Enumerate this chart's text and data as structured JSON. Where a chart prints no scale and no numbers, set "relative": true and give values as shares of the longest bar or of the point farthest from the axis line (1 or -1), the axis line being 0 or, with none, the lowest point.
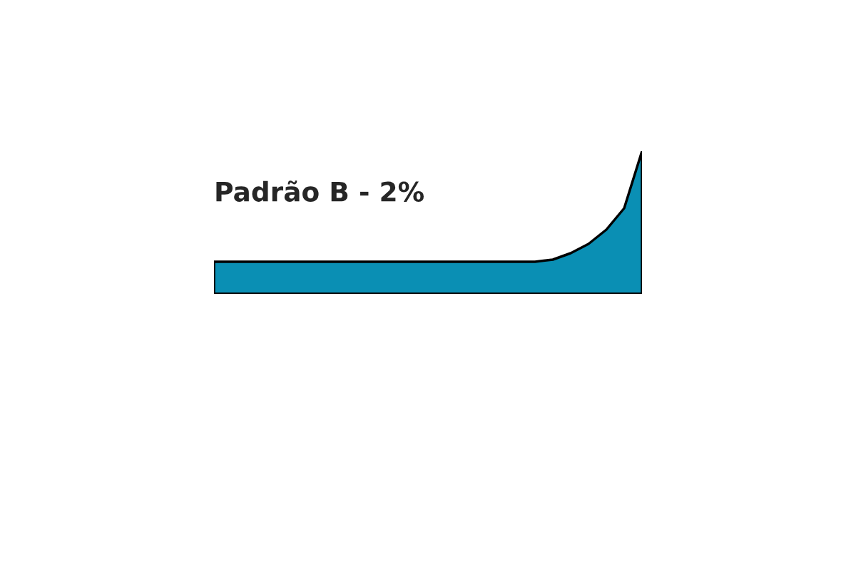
{
  "chart_data": {
    "type": "area",
    "title": "Padrão B - 2%",
    "relative": true,
    "categories": [
      null,
      null,
      null,
      null,
      null,
      null,
      null,
      null,
      null,
      null,
      null,
      null,
      null,
      null,
      null,
      null,
      null,
      null,
      null,
      null,
      null,
      null,
      null,
      null,
      null
    ],
    "series": [
      {
        "color": "#0a8fb4",
        "values": [
          0.225,
          0.225,
          0.225,
          0.225,
          0.225,
          0.225,
          0.225,
          0.225,
          0.225,
          0.225,
          0.225,
          0.225,
          0.225,
          0.225,
          0.225,
          0.225,
          0.225,
          0.225,
          0.225,
          0.24,
          0.285,
          0.35,
          0.45,
          0.6,
          1.0
        ]
      }
    ]
  }
}
